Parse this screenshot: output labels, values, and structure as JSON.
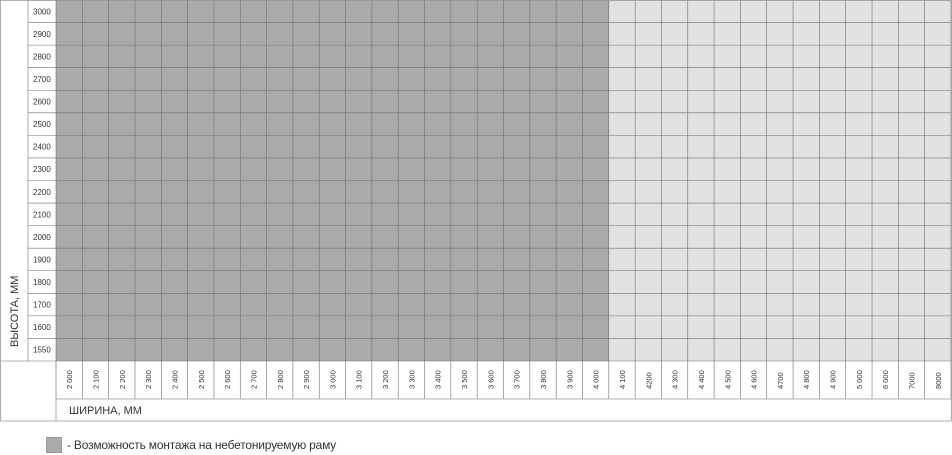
{
  "chart_data": {
    "type": "heatmap",
    "title": "",
    "ylabel": "ВЫСОТА, ММ",
    "xlabel": "ШИРИНА, ММ",
    "x_categories": [
      "2 000",
      "2 100",
      "2 200",
      "2 300",
      "2 400",
      "2 500",
      "2 600",
      "2 700",
      "2 800",
      "2 900",
      "3 000",
      "3 100",
      "3 200",
      "3 300",
      "3 400",
      "3 500",
      "3 600",
      "3 700",
      "3 800",
      "3 900",
      "4 000",
      "4 100",
      "4200",
      "4 300",
      "4 400",
      "4 500",
      "4 600",
      "4700",
      "4 800",
      "4 900",
      "5 000",
      "6 000",
      "7000",
      "8000"
    ],
    "y_categories": [
      "3000",
      "2900",
      "2800",
      "2700",
      "2600",
      "2500",
      "2400",
      "2300",
      "2200",
      "2100",
      "2000",
      "1900",
      "1800",
      "1700",
      "1600",
      "1550"
    ],
    "highlight_max_width": "4 000",
    "grid": true,
    "colors": {
      "highlight": "#aaaaaa",
      "base": "#e2e2e2",
      "grid": "#6e6e6e",
      "frame": "#999999"
    },
    "legend": {
      "text": "- Возможность монтажа на небетонируемую раму",
      "placement": "bottom-left"
    }
  }
}
